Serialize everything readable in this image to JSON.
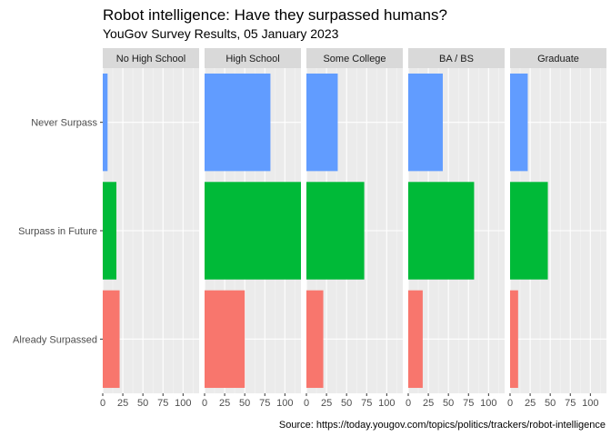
{
  "chart_data": {
    "type": "bar",
    "orientation": "horizontal",
    "title": "Robot intelligence: Have they surpassed humans?",
    "subtitle": "YouGov Survey Results, 05 January 2023",
    "caption": "Source: https://today.yougov.com/topics/politics/trackers/robot-intelligence",
    "facets": [
      "No High School",
      "High School",
      "Some College",
      "BA / BS",
      "Graduate"
    ],
    "categories": [
      "Never Surpass",
      "Surpass in Future",
      "Already Surpassed"
    ],
    "colors": {
      "Never Surpass": "#619CFF",
      "Surpass in Future": "#00BA38",
      "Already Surpassed": "#F8766D"
    },
    "xlim": [
      0,
      120
    ],
    "x_ticks": [
      0,
      25,
      50,
      75,
      100
    ],
    "x_tick_labels": [
      "0",
      "25",
      "50",
      "75",
      "100"
    ],
    "grid": true,
    "legend": "none",
    "values": {
      "No High School": {
        "Never Surpass": 6,
        "Surpass in Future": 17,
        "Already Surpassed": 21
      },
      "High School": {
        "Never Surpass": 82,
        "Surpass in Future": 121,
        "Already Surpassed": 50
      },
      "Some College": {
        "Never Surpass": 39,
        "Surpass in Future": 72,
        "Already Surpassed": 21
      },
      "BA / BS": {
        "Never Surpass": 43,
        "Surpass in Future": 82,
        "Already Surpassed": 18
      },
      "Graduate": {
        "Never Surpass": 22,
        "Surpass in Future": 47,
        "Already Surpassed": 10
      }
    }
  }
}
